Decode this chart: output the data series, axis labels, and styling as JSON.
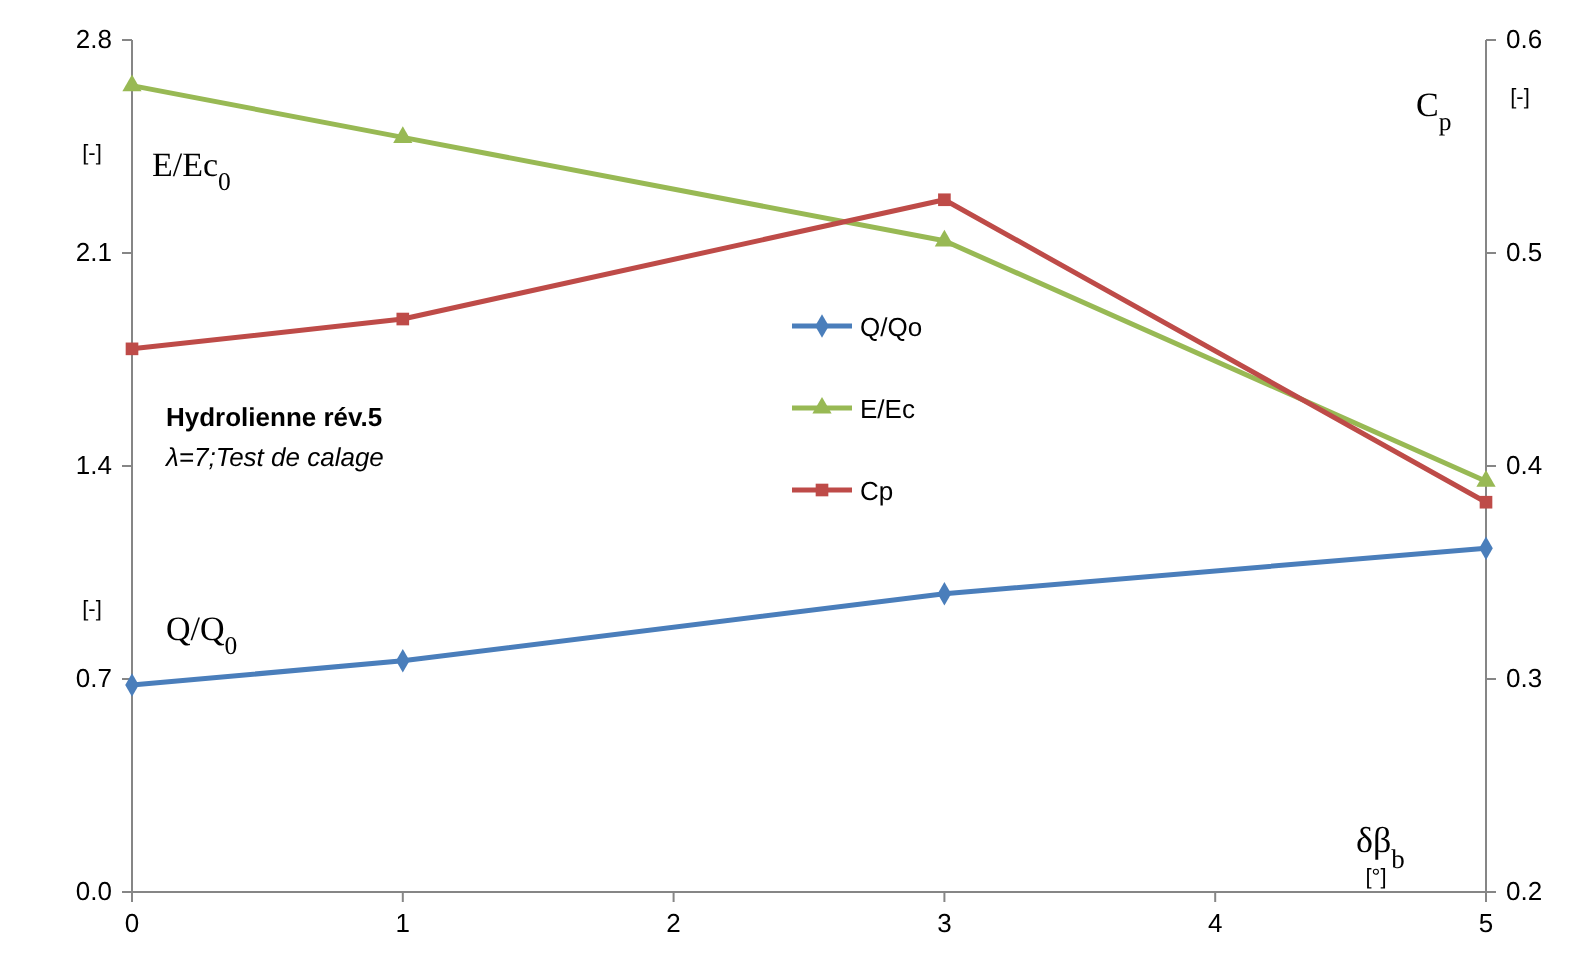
{
  "chart_data": {
    "type": "line",
    "title": "Hydrolienne rév.5",
    "subtitle": "λ=7;Test de calage",
    "xlabel": "δβ$_{b}$",
    "ylabel": "E/Ec$_{0}$",
    "y2label": "C$_{p}$",
    "annotations": [
      "[-]",
      "[-]",
      "Q/Q$_{0}$",
      "[-]",
      "[°]"
    ],
    "x": [
      0,
      1,
      3,
      5
    ],
    "series": [
      {
        "name": "Q/Qo",
        "color": "#4a7ebb",
        "marker": "diamond",
        "values": [
          0.68,
          0.76,
          0.98,
          1.13
        ]
      },
      {
        "name": "E/Ec",
        "color": "#98b954",
        "marker": "triangle",
        "values": [
          2.65,
          2.48,
          2.14,
          1.35
        ]
      },
      {
        "name": "Cp",
        "color": "#be4b48",
        "marker": "square",
        "axis": "y2",
        "values": [
          0.455,
          0.469,
          0.525,
          0.383
        ]
      }
    ],
    "xlim": [
      0,
      5
    ],
    "xticks": [
      0,
      1,
      2,
      3,
      4,
      5
    ],
    "ylim": [
      0,
      2.8
    ],
    "yticks": [
      {
        "value": 0,
        "label": "0.0"
      },
      0.7,
      1.4,
      2.1,
      2.8
    ],
    "y2lim": [
      0.2,
      0.6
    ],
    "y2ticks": [
      0.2,
      0.3,
      0.4,
      0.5,
      0.6
    ],
    "legend": "center",
    "grid": false,
    "line_style": "solid"
  }
}
